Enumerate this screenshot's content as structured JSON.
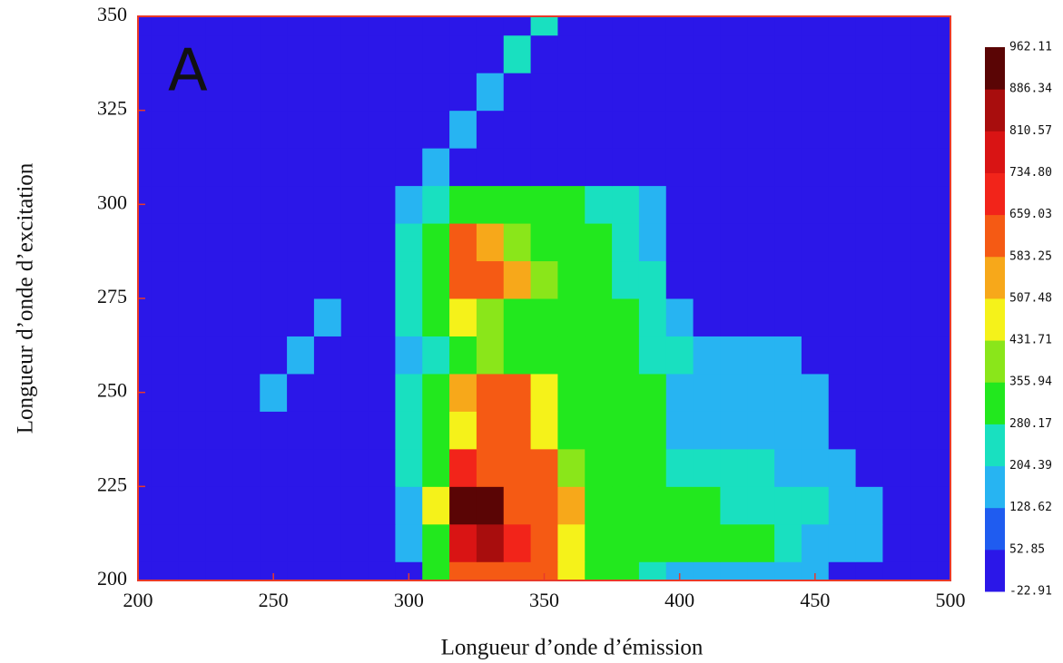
{
  "chart_data": {
    "type": "heatmap",
    "annotation": "A",
    "x_label": "Longueur d’onde d’émission",
    "y_label": "Longueur d’onde d’excitation",
    "x": [
      200,
      210,
      220,
      230,
      240,
      250,
      260,
      270,
      280,
      290,
      300,
      310,
      320,
      330,
      340,
      350,
      360,
      370,
      380,
      390,
      400,
      410,
      420,
      430,
      440,
      450,
      460,
      470,
      480,
      490,
      500
    ],
    "y": [
      200,
      210,
      220,
      230,
      240,
      250,
      260,
      270,
      280,
      290,
      300,
      310,
      320,
      330,
      340,
      350
    ],
    "z": [
      [
        0,
        0,
        0,
        0,
        0,
        0,
        0,
        0,
        0,
        0,
        0,
        300,
        620,
        650,
        650,
        600,
        450,
        320,
        300,
        250,
        180,
        180,
        180,
        150,
        150,
        150,
        0,
        0,
        0,
        0,
        0
      ],
      [
        0,
        0,
        0,
        0,
        0,
        0,
        0,
        0,
        0,
        0,
        150,
        350,
        800,
        850,
        700,
        620,
        500,
        330,
        320,
        320,
        320,
        320,
        320,
        300,
        250,
        200,
        160,
        130,
        0,
        0,
        0
      ],
      [
        0,
        0,
        0,
        0,
        0,
        0,
        0,
        0,
        0,
        0,
        200,
        450,
        900,
        900,
        650,
        620,
        560,
        330,
        320,
        310,
        300,
        290,
        280,
        260,
        240,
        220,
        180,
        150,
        0,
        0,
        0
      ],
      [
        0,
        0,
        0,
        0,
        0,
        0,
        0,
        0,
        0,
        0,
        230,
        330,
        680,
        640,
        620,
        600,
        420,
        320,
        310,
        300,
        230,
        230,
        220,
        220,
        200,
        180,
        150,
        0,
        0,
        0,
        0
      ],
      [
        0,
        0,
        0,
        0,
        0,
        0,
        0,
        0,
        0,
        0,
        250,
        320,
        500,
        620,
        600,
        450,
        330,
        320,
        310,
        300,
        170,
        170,
        170,
        170,
        170,
        150,
        0,
        0,
        0,
        0,
        0
      ],
      [
        0,
        0,
        0,
        0,
        0,
        150,
        0,
        0,
        0,
        0,
        250,
        320,
        560,
        630,
        600,
        450,
        330,
        320,
        310,
        290,
        170,
        170,
        170,
        170,
        170,
        150,
        0,
        0,
        0,
        0,
        0
      ],
      [
        0,
        0,
        0,
        0,
        0,
        0,
        200,
        0,
        0,
        0,
        200,
        280,
        330,
        360,
        340,
        330,
        320,
        310,
        300,
        280,
        230,
        200,
        180,
        160,
        130,
        0,
        0,
        0,
        0,
        0,
        0
      ],
      [
        0,
        0,
        0,
        0,
        0,
        0,
        0,
        150,
        0,
        0,
        240,
        320,
        480,
        400,
        350,
        340,
        330,
        320,
        290,
        250,
        130,
        0,
        0,
        0,
        0,
        0,
        0,
        0,
        0,
        0,
        0
      ],
      [
        0,
        0,
        0,
        0,
        0,
        0,
        0,
        0,
        0,
        0,
        260,
        330,
        620,
        640,
        550,
        360,
        330,
        320,
        280,
        220,
        0,
        0,
        0,
        0,
        0,
        0,
        0,
        0,
        0,
        0,
        0
      ],
      [
        0,
        0,
        0,
        0,
        0,
        0,
        0,
        0,
        0,
        0,
        260,
        330,
        600,
        520,
        380,
        330,
        320,
        300,
        260,
        150,
        0,
        0,
        0,
        0,
        0,
        0,
        0,
        0,
        0,
        0,
        0
      ],
      [
        0,
        0,
        0,
        0,
        0,
        0,
        0,
        0,
        0,
        0,
        150,
        260,
        330,
        320,
        320,
        310,
        300,
        280,
        230,
        140,
        0,
        0,
        0,
        0,
        0,
        0,
        0,
        0,
        0,
        0,
        0
      ],
      [
        0,
        0,
        0,
        0,
        0,
        0,
        0,
        0,
        0,
        0,
        0,
        150,
        0,
        0,
        0,
        0,
        0,
        0,
        0,
        0,
        0,
        0,
        0,
        0,
        0,
        0,
        0,
        0,
        0,
        0,
        0
      ],
      [
        0,
        0,
        0,
        0,
        0,
        0,
        0,
        0,
        0,
        0,
        0,
        0,
        200,
        0,
        0,
        0,
        0,
        0,
        0,
        0,
        0,
        0,
        0,
        0,
        0,
        0,
        0,
        0,
        0,
        0,
        0
      ],
      [
        0,
        0,
        0,
        0,
        0,
        0,
        0,
        0,
        0,
        0,
        0,
        0,
        0,
        200,
        0,
        0,
        0,
        0,
        0,
        0,
        0,
        0,
        0,
        0,
        0,
        0,
        0,
        0,
        0,
        0,
        0
      ],
      [
        0,
        0,
        0,
        0,
        0,
        0,
        0,
        0,
        0,
        0,
        0,
        0,
        0,
        0,
        230,
        0,
        0,
        0,
        0,
        0,
        0,
        0,
        0,
        0,
        0,
        0,
        0,
        0,
        0,
        0,
        0
      ],
      [
        0,
        0,
        0,
        0,
        0,
        0,
        0,
        0,
        0,
        0,
        0,
        0,
        0,
        0,
        0,
        230,
        0,
        0,
        0,
        0,
        0,
        0,
        0,
        0,
        0,
        0,
        0,
        0,
        0,
        0,
        0
      ]
    ],
    "xlim": [
      200,
      500
    ],
    "ylim": [
      200,
      350
    ],
    "xticks": [
      200,
      250,
      300,
      350,
      400,
      450,
      500
    ],
    "yticks": [
      200,
      225,
      250,
      275,
      300,
      325,
      350
    ],
    "levels": [
      -22.91,
      52.85,
      128.62,
      204.39,
      280.17,
      355.94,
      431.71,
      507.48,
      583.25,
      659.03,
      {
        "value": 734.8,
        "label": "734.80"
      },
      810.57,
      886.34,
      962.11
    ],
    "colors": [
      "#2b17e8",
      "#1f5cf0",
      "#27b4f2",
      "#19e0c0",
      "#22e81e",
      "#8ae61a",
      "#f5f21a",
      "#f7a81a",
      "#f55a14",
      "#f2241a",
      "#d91414",
      "#a80d0d",
      "#5a0505"
    ],
    "frame_color": "#e83a2a"
  }
}
